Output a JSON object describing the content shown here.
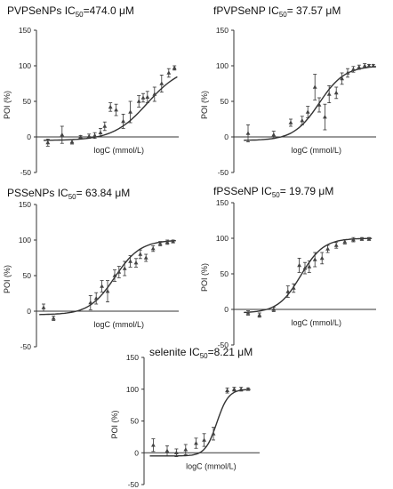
{
  "chart_data": [
    {
      "type": "scatter",
      "title": "PVPSeNPs IC50=474.0 μM",
      "title_main": "PVPSeNPs IC",
      "title_sub": "50",
      "title_rest": "=474.0 μM",
      "xlabel": "logC (mmol/L)",
      "ylabel": "POI (%)",
      "ylim": [
        -50,
        150
      ],
      "yticks": [
        "150",
        "100",
        "50",
        "0",
        "-50"
      ],
      "x": [
        0.08,
        0.18,
        0.25,
        0.31,
        0.37,
        0.41,
        0.45,
        0.48,
        0.52,
        0.56,
        0.61,
        0.66,
        0.72,
        0.75,
        0.78,
        0.83,
        0.88,
        0.93,
        0.97
      ],
      "y": [
        -8,
        3,
        -7,
        0,
        1,
        2,
        6,
        15,
        42,
        38,
        22,
        35,
        50,
        55,
        56,
        60,
        75,
        90,
        97
      ],
      "err": [
        5,
        12,
        3,
        2,
        3,
        4,
        6,
        6,
        6,
        8,
        10,
        15,
        8,
        6,
        8,
        10,
        12,
        6,
        3
      ],
      "curve_midpoint": 0.78,
      "curve_slope": 0.12
    },
    {
      "type": "scatter",
      "title": "fPVPSeNP IC50= 37.57 μM",
      "title_main": "fPVPSeNP IC",
      "title_sub": "50",
      "title_rest": "= 37.57 μM",
      "xlabel": "logC (mmol/L)",
      "ylabel": "POI (%)",
      "ylim": [
        -50,
        150
      ],
      "yticks": [
        "150",
        "100",
        "50",
        "0",
        "-50"
      ],
      "x": [
        0.1,
        0.28,
        0.4,
        0.48,
        0.52,
        0.57,
        0.6,
        0.64,
        0.67,
        0.72,
        0.76,
        0.8,
        0.84,
        0.88,
        0.92,
        0.95,
        0.98
      ],
      "y": [
        5,
        3,
        20,
        23,
        35,
        70,
        45,
        28,
        60,
        62,
        82,
        90,
        95,
        98,
        100,
        100,
        100
      ],
      "err": [
        12,
        5,
        5,
        6,
        8,
        18,
        10,
        18,
        12,
        8,
        8,
        6,
        4,
        3,
        3,
        2,
        2
      ],
      "curve_midpoint": 0.6,
      "curve_slope": 0.09
    },
    {
      "type": "scatter",
      "title": "PSSeNPs IC50= 63.84 μM",
      "title_main": "PSSeNPs IC",
      "title_sub": "50",
      "title_rest": "= 63.84 μM",
      "xlabel": "logC (mmol/L)",
      "ylabel": "POI (%)",
      "ylim": [
        -50,
        150
      ],
      "yticks": [
        "150",
        "100",
        "50",
        "0",
        "-50"
      ],
      "x": [
        0.05,
        0.12,
        0.38,
        0.42,
        0.46,
        0.5,
        0.55,
        0.58,
        0.62,
        0.66,
        0.7,
        0.73,
        0.77,
        0.82,
        0.87,
        0.92,
        0.96
      ],
      "y": [
        5,
        -10,
        12,
        18,
        35,
        28,
        50,
        55,
        60,
        70,
        68,
        80,
        75,
        88,
        95,
        97,
        98
      ],
      "err": [
        5,
        3,
        10,
        8,
        8,
        15,
        8,
        8,
        10,
        8,
        6,
        6,
        5,
        4,
        3,
        3,
        2
      ],
      "curve_midpoint": 0.55,
      "curve_slope": 0.09
    },
    {
      "type": "scatter",
      "title": "fPSSeNP IC50= 19.79 μM",
      "title_main": "fPSSeNP IC",
      "title_sub": "50",
      "title_rest": "= 19.79 μM",
      "xlabel": "logC (mmol/L)",
      "ylabel": "POI (%)",
      "ylim": [
        -50,
        150
      ],
      "yticks": [
        "150",
        "100",
        "50",
        "0",
        "-50"
      ],
      "x": [
        0.1,
        0.18,
        0.28,
        0.38,
        0.42,
        0.46,
        0.5,
        0.53,
        0.57,
        0.62,
        0.66,
        0.72,
        0.78,
        0.84,
        0.9,
        0.95
      ],
      "y": [
        -5,
        -8,
        0,
        25,
        30,
        62,
        58,
        60,
        70,
        72,
        85,
        90,
        95,
        98,
        99,
        99
      ],
      "err": [
        3,
        3,
        3,
        8,
        6,
        10,
        8,
        8,
        10,
        8,
        5,
        4,
        3,
        3,
        2,
        2
      ],
      "curve_midpoint": 0.47,
      "curve_slope": 0.08
    },
    {
      "type": "scatter",
      "title": "selenite IC50=8.21 μM",
      "title_main": "selenite IC",
      "title_sub": "50",
      "title_rest": "=8.21  μM",
      "xlabel": "logC (mmol/L)",
      "ylabel": "POI (%)",
      "ylim": [
        -50,
        150
      ],
      "yticks": [
        "150",
        "100",
        "50",
        "0",
        "-50"
      ],
      "x": [
        0.08,
        0.2,
        0.28,
        0.36,
        0.45,
        0.52,
        0.6,
        0.72,
        0.78,
        0.84,
        0.9
      ],
      "y": [
        12,
        3,
        0,
        5,
        15,
        20,
        30,
        98,
        100,
        100,
        100
      ],
      "err": [
        10,
        8,
        6,
        8,
        8,
        10,
        10,
        4,
        3,
        3,
        2
      ],
      "curve_midpoint": 0.63,
      "curve_slope": 0.05
    }
  ]
}
